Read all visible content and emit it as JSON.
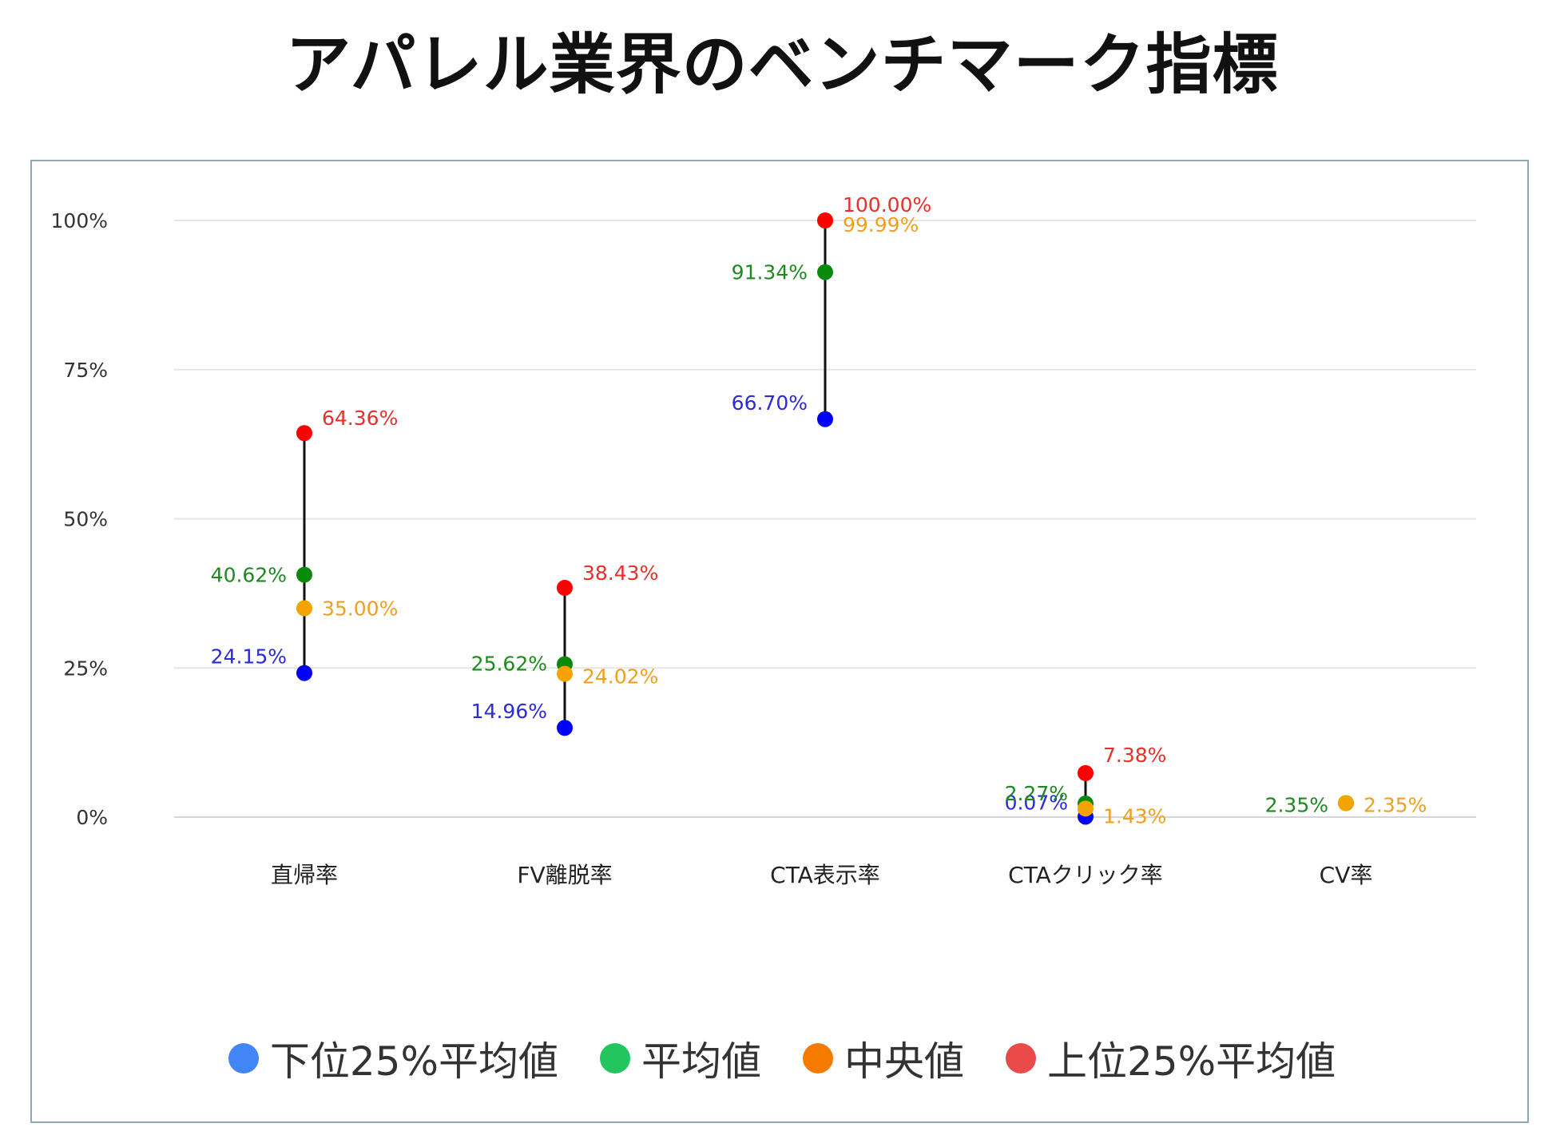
{
  "title": "アパレル業界のベンチマーク指標",
  "chart_data": {
    "type": "dot-range",
    "title": "アパレル業界のベンチマーク指標",
    "categories": [
      "直帰率",
      "FV離脱率",
      "CTA表示率",
      "CTAクリック率",
      "CV率"
    ],
    "ylim": [
      0,
      100
    ],
    "yticks": [
      "0%",
      "25%",
      "50%",
      "75%",
      "100%"
    ],
    "ytick_values": [
      0,
      25,
      50,
      75,
      100
    ],
    "series": [
      {
        "name": "下位25%平均値",
        "legend_color": "#4285f4",
        "point_color": "#0000ff",
        "label_color": "#2b2bd9",
        "values": [
          24.15,
          14.96,
          66.7,
          0.07,
          null
        ],
        "labels": [
          "24.15%",
          "14.96%",
          "66.70%",
          "0.07%",
          ""
        ],
        "label_side": [
          "left",
          "left",
          "left",
          "left",
          "left"
        ]
      },
      {
        "name": "平均値",
        "legend_color": "#22c55e",
        "point_color": "#0a8a0a",
        "label_color": "#1e8a1e",
        "values": [
          40.62,
          25.62,
          91.34,
          2.27,
          2.35
        ],
        "labels": [
          "40.62%",
          "25.62%",
          "91.34%",
          "2.27%",
          "2.35%"
        ],
        "label_side": [
          "left",
          "left",
          "left",
          "left",
          "left"
        ]
      },
      {
        "name": "中央値",
        "legend_color": "#f57c00",
        "point_color": "#f5a300",
        "label_color": "#f0a020",
        "values": [
          35.0,
          24.02,
          99.99,
          1.43,
          2.35
        ],
        "labels": [
          "35.00%",
          "24.02%",
          "99.99%",
          "1.43%",
          "2.35%"
        ],
        "label_side": [
          "right",
          "right",
          "right",
          "right",
          "right"
        ]
      },
      {
        "name": "上位25%平均値",
        "legend_color": "#ea4a4a",
        "point_color": "#ff0000",
        "label_color": "#e8302a",
        "values": [
          64.36,
          38.43,
          100.0,
          7.38,
          null
        ],
        "labels": [
          "64.36%",
          "38.43%",
          "100.00%",
          "7.38%",
          ""
        ],
        "label_side": [
          "right",
          "right",
          "right",
          "right",
          "right"
        ]
      }
    ],
    "legend_position": "bottom",
    "grid": true
  }
}
